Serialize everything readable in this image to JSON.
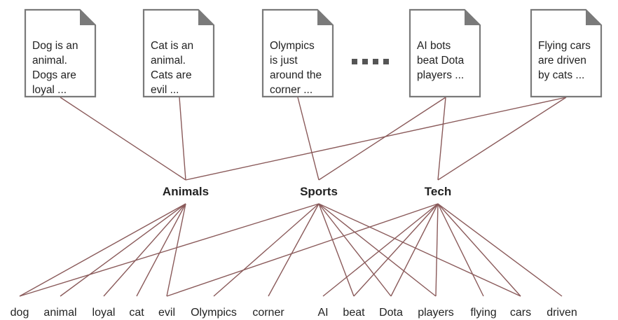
{
  "documents": [
    {
      "lines": [
        "Dog is an",
        "animal.",
        "Dogs are",
        "loyal ..."
      ]
    },
    {
      "lines": [
        "Cat is an",
        "animal.",
        "Cats are",
        "evil ..."
      ]
    },
    {
      "lines": [
        "Olympics",
        "is just",
        "around the",
        "corner ..."
      ]
    },
    {
      "lines": [
        "AI bots",
        "beat Dota",
        "players ..."
      ]
    },
    {
      "lines": [
        "Flying cars",
        "are driven",
        "by cats ..."
      ]
    }
  ],
  "ellipsis_count": 4,
  "topics": [
    "Animals",
    "Sports",
    "Tech"
  ],
  "words": [
    "dog",
    "animal",
    "loyal",
    "cat",
    "evil",
    "Olympics",
    "corner",
    "AI",
    "beat",
    "Dota",
    "players",
    "flying",
    "cars",
    "driven"
  ],
  "doc_topic_edges": [
    {
      "doc": 0,
      "topic": "Animals"
    },
    {
      "doc": 1,
      "topic": "Animals"
    },
    {
      "doc": 2,
      "topic": "Sports"
    },
    {
      "doc": 3,
      "topic": "Sports"
    },
    {
      "doc": 3,
      "topic": "Tech"
    },
    {
      "doc": 4,
      "topic": "Animals"
    },
    {
      "doc": 4,
      "topic": "Tech"
    }
  ],
  "topic_word_edges": {
    "Animals": [
      "dog",
      "animal",
      "loyal",
      "cat",
      "evil"
    ],
    "Sports": [
      "dog",
      "Olympics",
      "corner",
      "beat",
      "Dota",
      "players",
      "cars"
    ],
    "Tech": [
      "evil",
      "AI",
      "beat",
      "Dota",
      "players",
      "flying",
      "cars",
      "driven"
    ]
  },
  "colors": {
    "edge": "#8a5a5a",
    "doc_border": "#7a7a7a",
    "text": "#222222"
  }
}
